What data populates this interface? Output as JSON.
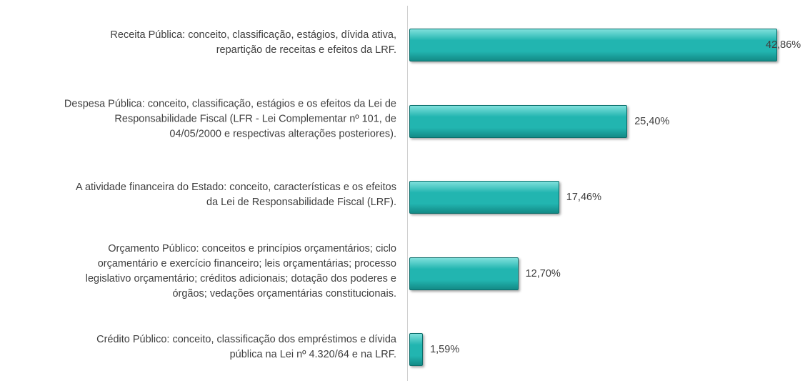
{
  "chart_data": {
    "type": "bar",
    "orientation": "horizontal",
    "categories": [
      "Receita Pública: conceito, classificação, estágios, dívida ativa,\nrepartição de receitas e efeitos da LRF.",
      "Despesa Pública: conceito, classificação, estágios e os efeitos da Lei de\nResponsabilidade Fiscal (LFR - Lei Complementar nº 101, de\n04/05/2000 e respectivas alterações posteriores).",
      "A atividade financeira do Estado: conceito, características e os efeitos\nda Lei de Responsabilidade Fiscal (LRF).",
      "Orçamento Público: conceitos e princípios orçamentários; ciclo\norçamentário e exercício financeiro; leis orçamentárias; processo\nlegislativo orçamentário; créditos adicionais; dotação dos poderes e\nórgãos; vedações orçamentárias constitucionais.",
      "Crédito Público: conceito, classificação dos empréstimos e dívida\npública na Lei nº 4.320/64 e na LRF."
    ],
    "values": [
      42.86,
      25.4,
      17.46,
      12.7,
      1.59
    ],
    "value_labels": [
      "42,86%",
      "25,40%",
      "17,46%",
      "12,70%",
      "1,59%"
    ],
    "color": "#22b5b0"
  }
}
